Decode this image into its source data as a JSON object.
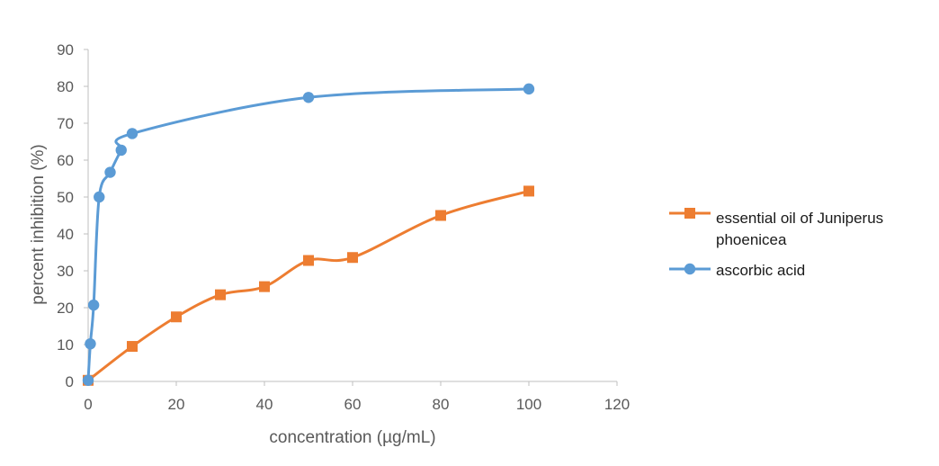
{
  "chart_data": {
    "type": "line",
    "title": "",
    "xlabel": "concentration  (µg/mL)",
    "ylabel": "percent  inhibition (%)",
    "xlim": [
      0,
      120
    ],
    "ylim": [
      0,
      90
    ],
    "x_ticks": [
      "0",
      "20",
      "40",
      "60",
      "80",
      "100",
      "120"
    ],
    "y_ticks": [
      "0",
      "10",
      "20",
      "30",
      "40",
      "50",
      "60",
      "70",
      "80",
      "90"
    ],
    "grid": false,
    "legend_position": "right",
    "series": [
      {
        "name": "essential oil of Juniperus phoenicea",
        "legend_lines": [
          "essential oil of Juniperus",
          "phoenicea"
        ],
        "color": "#ED7D31",
        "marker": "square",
        "x": [
          0,
          10,
          20,
          30,
          40,
          50,
          60,
          80,
          100
        ],
        "y": [
          0.3,
          9.5,
          17.5,
          23.5,
          25.7,
          32.8,
          33.6,
          45,
          51.6
        ]
      },
      {
        "name": "ascorbic acid",
        "legend_lines": [
          "ascorbic acid"
        ],
        "color": "#5B9BD5",
        "marker": "circle",
        "x": [
          0,
          0.5,
          1.25,
          2.5,
          5,
          7.5,
          10,
          50,
          100
        ],
        "y": [
          0.3,
          10.2,
          20.7,
          50,
          56.7,
          62.7,
          67.2,
          77,
          79.3
        ]
      }
    ]
  }
}
